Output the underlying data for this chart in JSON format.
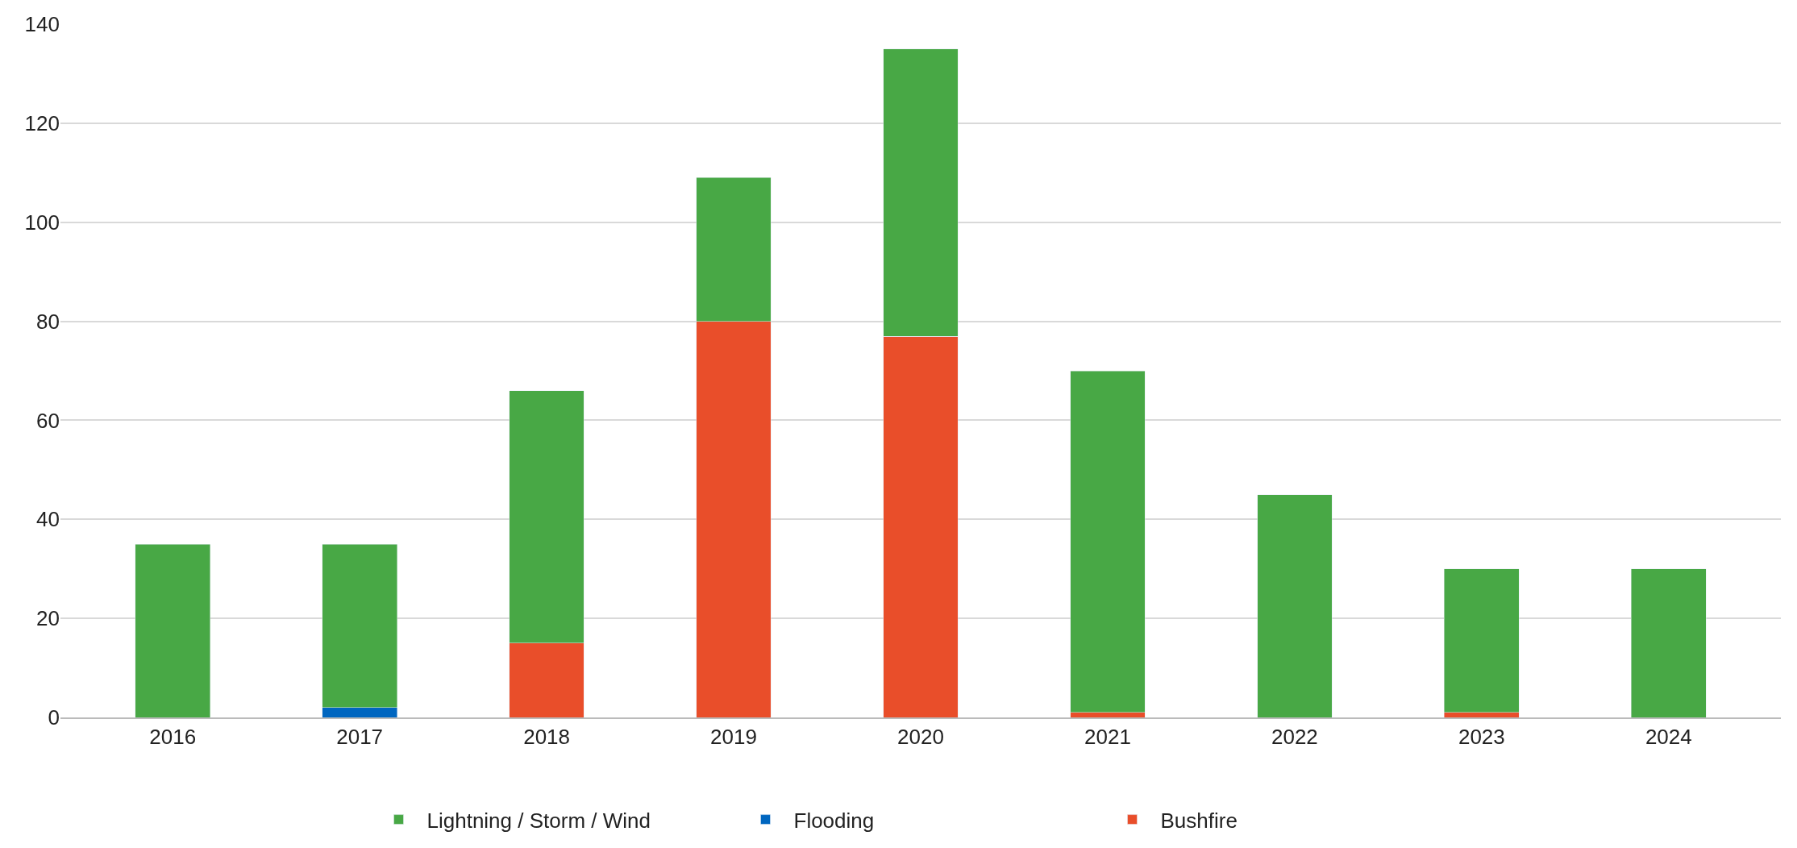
{
  "chart_data": {
    "type": "bar",
    "stacked": true,
    "categories": [
      "2016",
      "2017",
      "2018",
      "2019",
      "2020",
      "2021",
      "2022",
      "2023",
      "2024"
    ],
    "series": [
      {
        "name": "Bushfire",
        "color": "#e94e2a",
        "values": [
          0,
          0,
          15,
          80,
          77,
          1,
          0,
          1,
          0
        ]
      },
      {
        "name": "Flooding",
        "color": "#0066c0",
        "values": [
          0,
          2,
          0,
          0,
          0,
          0,
          0,
          0,
          0
        ]
      },
      {
        "name": "Lightning / Storm / Wind",
        "color": "#48a845",
        "values": [
          35,
          33,
          51,
          29,
          58,
          69,
          45,
          29,
          30
        ]
      }
    ],
    "ylim": [
      0,
      140
    ],
    "yticks": [
      0,
      20,
      40,
      60,
      80,
      100,
      120,
      140
    ],
    "grid": "y",
    "legend": "bottom"
  }
}
